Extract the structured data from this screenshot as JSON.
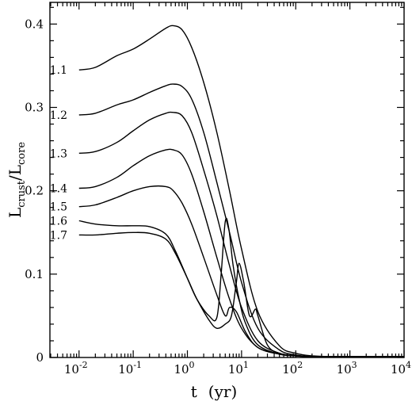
{
  "chart_data": {
    "type": "line",
    "xscale": "log",
    "xlim": [
      0.0029,
      10000
    ],
    "ylim": [
      0,
      0.426
    ],
    "xticks": [
      {
        "value": 0.01,
        "base": "10",
        "exp": "-2"
      },
      {
        "value": 0.1,
        "base": "10",
        "exp": "-1"
      },
      {
        "value": 1,
        "base": "10",
        "exp": "0"
      },
      {
        "value": 10,
        "base": "10",
        "exp": "1"
      },
      {
        "value": 100,
        "base": "10",
        "exp": "2"
      },
      {
        "value": 1000,
        "base": "10",
        "exp": "3"
      },
      {
        "value": 10000,
        "base": "10",
        "exp": "4"
      }
    ],
    "yticks": [
      {
        "value": 0,
        "label": "0"
      },
      {
        "value": 0.1,
        "label": "0.1"
      },
      {
        "value": 0.2,
        "label": "0.2"
      },
      {
        "value": 0.3,
        "label": "0.3"
      },
      {
        "value": 0.4,
        "label": "0.4"
      }
    ],
    "xlabel": {
      "main": "t",
      "unit": "(yr)"
    },
    "ylabel": {
      "L1": "L",
      "sub1": "crust",
      "slash": "/",
      "L2": "L",
      "sub2": "core"
    },
    "series": [
      {
        "name": "1.1",
        "x": [
          0.01,
          0.02,
          0.05,
          0.1,
          0.2,
          0.4,
          0.55,
          0.8,
          1.2,
          2,
          3.5,
          6,
          10,
          20,
          50,
          100,
          200,
          500,
          10000
        ],
        "y": [
          0.345,
          0.348,
          0.362,
          0.37,
          0.382,
          0.395,
          0.398,
          0.393,
          0.372,
          0.33,
          0.27,
          0.2,
          0.13,
          0.055,
          0.014,
          0.005,
          0.002,
          0.001,
          0.001
        ]
      },
      {
        "name": "1.2",
        "x": [
          0.01,
          0.02,
          0.05,
          0.1,
          0.2,
          0.4,
          0.55,
          0.8,
          1.2,
          2,
          3.5,
          6,
          10,
          20,
          50,
          100,
          200,
          500,
          10000
        ],
        "y": [
          0.291,
          0.293,
          0.303,
          0.309,
          0.318,
          0.326,
          0.328,
          0.325,
          0.31,
          0.27,
          0.21,
          0.15,
          0.09,
          0.035,
          0.009,
          0.003,
          0.001,
          0.001,
          0.001
        ]
      },
      {
        "name": "1.3",
        "x": [
          0.01,
          0.02,
          0.05,
          0.1,
          0.2,
          0.4,
          0.55,
          0.8,
          1.2,
          2,
          3.5,
          6,
          10,
          20,
          50,
          100,
          200,
          500,
          10000
        ],
        "y": [
          0.245,
          0.247,
          0.258,
          0.272,
          0.285,
          0.293,
          0.294,
          0.29,
          0.27,
          0.225,
          0.17,
          0.11,
          0.06,
          0.02,
          0.005,
          0.002,
          0.001,
          0.001,
          0.001
        ]
      },
      {
        "name": "1.4",
        "x": [
          0.01,
          0.02,
          0.05,
          0.1,
          0.2,
          0.4,
          0.55,
          0.8,
          1.2,
          2,
          3.5,
          6,
          10,
          20,
          50,
          100,
          200,
          500,
          10000
        ],
        "y": [
          0.203,
          0.205,
          0.216,
          0.23,
          0.242,
          0.249,
          0.249,
          0.243,
          0.22,
          0.175,
          0.12,
          0.07,
          0.035,
          0.012,
          0.004,
          0.002,
          0.001,
          0.001,
          0.001
        ]
      },
      {
        "name": "1.5",
        "x": [
          0.01,
          0.02,
          0.05,
          0.1,
          0.2,
          0.4,
          0.55,
          0.8,
          1.2,
          2,
          3.5,
          5,
          6,
          8,
          12,
          20,
          50,
          100,
          200,
          500,
          10000
        ],
        "y": [
          0.181,
          0.183,
          0.192,
          0.2,
          0.205,
          0.205,
          0.2,
          0.185,
          0.16,
          0.12,
          0.075,
          0.05,
          0.06,
          0.055,
          0.03,
          0.012,
          0.004,
          0.002,
          0.001,
          0.001,
          0.001
        ]
      },
      {
        "name": "1.6",
        "x": [
          0.01,
          0.02,
          0.05,
          0.1,
          0.2,
          0.4,
          0.6,
          1,
          1.5,
          2.5,
          3.5,
          4.2,
          5,
          5.8,
          7,
          9,
          12,
          20,
          50,
          100,
          200,
          500,
          10000
        ],
        "y": [
          0.164,
          0.16,
          0.158,
          0.158,
          0.157,
          0.148,
          0.128,
          0.095,
          0.07,
          0.05,
          0.048,
          0.1,
          0.163,
          0.155,
          0.11,
          0.07,
          0.04,
          0.015,
          0.004,
          0.002,
          0.001,
          0.001,
          0.001
        ]
      },
      {
        "name": "1.7",
        "x": [
          0.01,
          0.02,
          0.05,
          0.1,
          0.2,
          0.4,
          0.6,
          1,
          1.5,
          2.5,
          3.5,
          5,
          6.5,
          8,
          9,
          11,
          14,
          18,
          20,
          30,
          50,
          100,
          200,
          500,
          10000
        ],
        "y": [
          0.147,
          0.147,
          0.149,
          0.15,
          0.149,
          0.142,
          0.125,
          0.095,
          0.07,
          0.045,
          0.035,
          0.04,
          0.05,
          0.09,
          0.113,
          0.09,
          0.05,
          0.058,
          0.05,
          0.015,
          0.005,
          0.002,
          0.001,
          0.001,
          0.001
        ]
      }
    ]
  }
}
